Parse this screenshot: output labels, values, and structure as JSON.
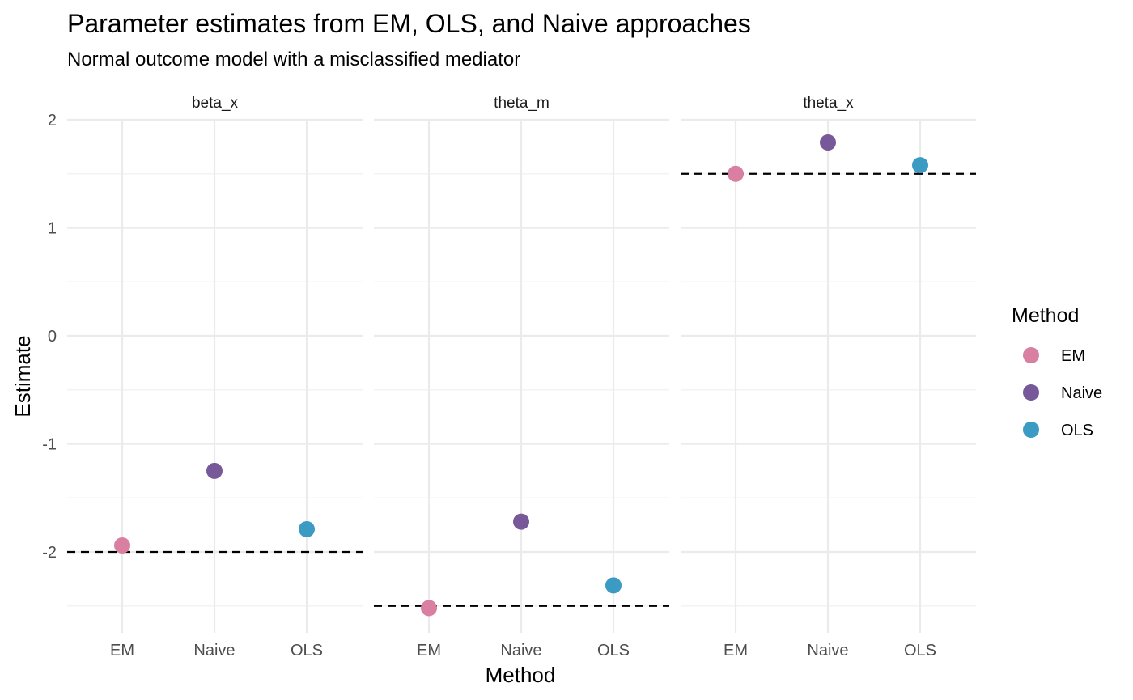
{
  "chart_data": {
    "type": "scatter",
    "title": "Parameter estimates from EM, OLS, and Naive approaches",
    "subtitle": "Normal outcome model with a misclassified mediator",
    "xlabel": "Method",
    "ylabel": "Estimate",
    "categories": [
      "EM",
      "Naive",
      "OLS"
    ],
    "ylim": [
      -2.75,
      2.1
    ],
    "yticks": [
      -2,
      -1,
      0,
      1,
      2
    ],
    "ytick_labels": [
      "-2",
      "-1",
      "0",
      "1",
      "2"
    ],
    "grid": true,
    "legend": {
      "title": "Method",
      "position": "right",
      "entries": [
        {
          "label": "EM",
          "color": "#d97fa1"
        },
        {
          "label": "Naive",
          "color": "#77599a"
        },
        {
          "label": "OLS",
          "color": "#3b9bc2"
        }
      ]
    },
    "facets": [
      {
        "label": "beta_x",
        "true_value": -2.0,
        "values": {
          "EM": -1.94,
          "Naive": -1.25,
          "OLS": -1.79
        }
      },
      {
        "label": "theta_m",
        "true_value": -2.5,
        "values": {
          "EM": -2.52,
          "Naive": -1.72,
          "OLS": -2.31
        }
      },
      {
        "label": "theta_x",
        "true_value": 1.5,
        "values": {
          "EM": 1.5,
          "Naive": 1.79,
          "OLS": 1.58
        }
      }
    ]
  }
}
